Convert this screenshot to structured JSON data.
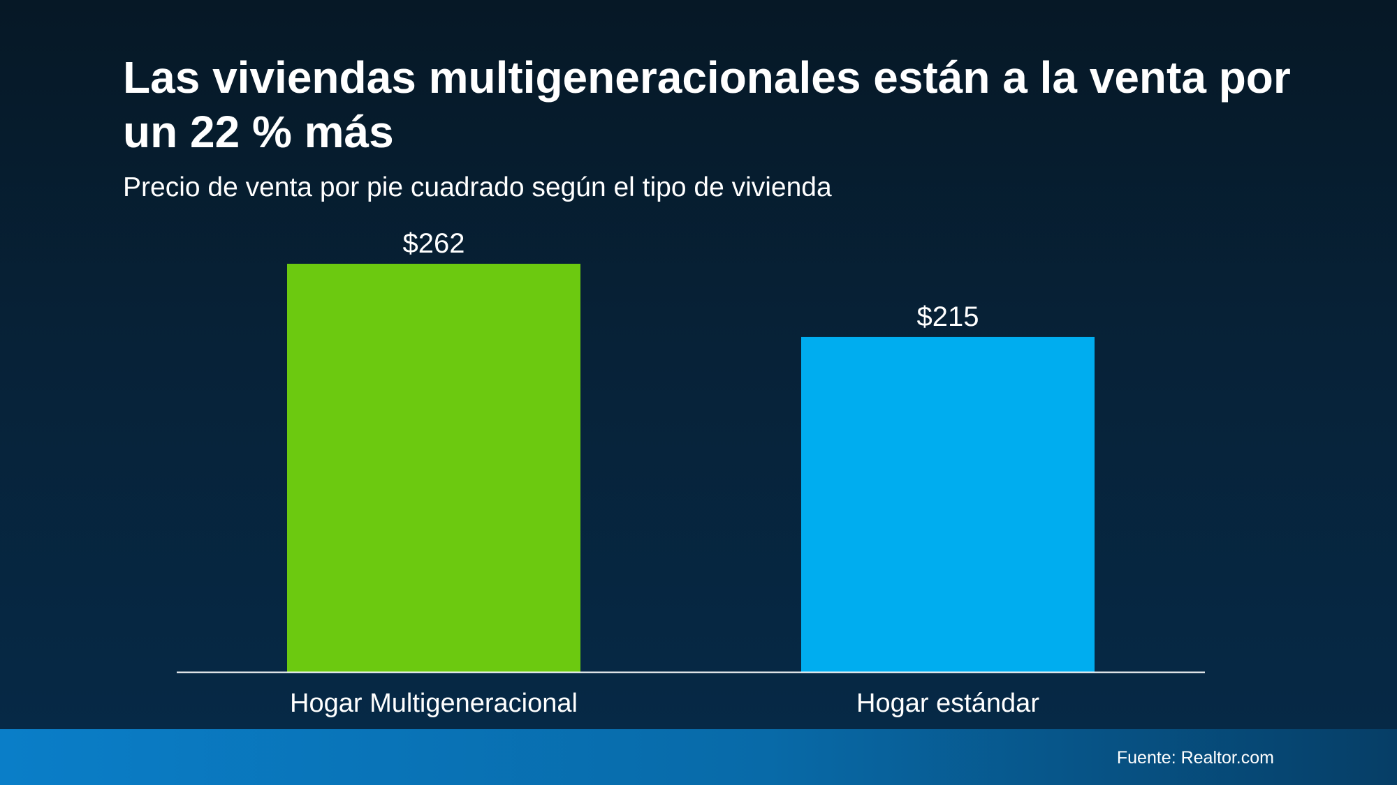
{
  "header": {
    "title": "Las viviendas multigeneracionales están a la venta por un 22 % más",
    "subtitle": "Precio de venta por pie cuadrado según el tipo de vivienda"
  },
  "footer": {
    "source": "Fuente: Realtor.com"
  },
  "chart_data": {
    "type": "bar",
    "categories": [
      "Hogar Multigeneracional",
      "Hogar estándar"
    ],
    "values": [
      262,
      215
    ],
    "value_labels": [
      "$262",
      "$215"
    ],
    "colors": [
      "#6cc910",
      "#00adef"
    ],
    "ylim": [
      0,
      262
    ],
    "grid": false,
    "legend": "none",
    "axis_line_color": "#ffffff"
  }
}
